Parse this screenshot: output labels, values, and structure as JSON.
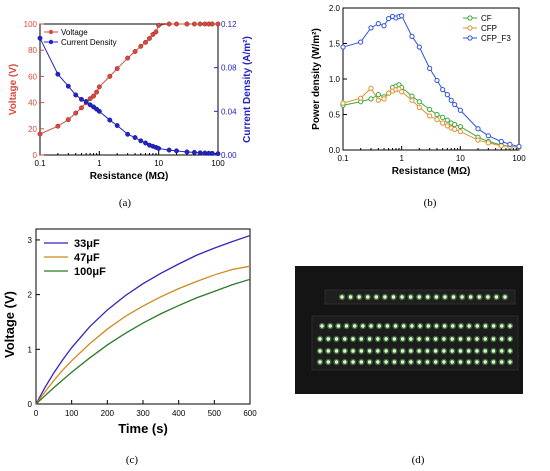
{
  "captions": [
    "(a)",
    "(b)",
    "(c)",
    "(d)"
  ],
  "colors": {
    "voltage": "#d84a3e",
    "current": "#2323c8",
    "cf": "#3aa83a",
    "cfp": "#e0902e",
    "cfp_f3": "#2f52d8",
    "c33": "#3a1fc0",
    "c47": "#d08a1a",
    "c100": "#2a7a2a",
    "led_bg": "#141414",
    "led": "#8cf07a"
  },
  "chart_data": [
    {
      "type": "line",
      "xscale": "log",
      "xlabel": "Resistance (MΩ)",
      "ylabel": "Voltage (V)",
      "ylabel_right": "Current Density (A/m²)",
      "xlim": [
        0.1,
        100
      ],
      "ylim": [
        0,
        100
      ],
      "ylim_right": [
        0,
        0.12
      ],
      "xticks": [
        "0.1",
        "1",
        "10",
        "100"
      ],
      "yticks": [
        "0",
        "20",
        "40",
        "60",
        "80",
        "100"
      ],
      "yticks_right": [
        "0.00",
        "0.04",
        "0.08",
        "0.12"
      ],
      "legend_placement": "top-left",
      "series": [
        {
          "name": "Voltage",
          "axis": "left",
          "x": [
            0.1,
            0.2,
            0.3,
            0.4,
            0.5,
            0.6,
            0.7,
            0.8,
            0.9,
            1,
            1.5,
            2,
            3,
            4,
            5,
            6,
            7,
            8,
            9,
            10,
            15,
            20,
            30,
            40,
            50,
            60,
            70,
            80,
            100
          ],
          "y": [
            16,
            22,
            27,
            32,
            36,
            40,
            43,
            45,
            48,
            52,
            60,
            66,
            74,
            79,
            83,
            86,
            89,
            92,
            94,
            99,
            100,
            100,
            100,
            100,
            100,
            100,
            100,
            100,
            100
          ]
        },
        {
          "name": "Current Density",
          "axis": "right",
          "x": [
            0.1,
            0.2,
            0.3,
            0.4,
            0.5,
            0.6,
            0.7,
            0.8,
            0.9,
            1,
            1.5,
            2,
            3,
            4,
            5,
            6,
            7,
            8,
            9,
            10,
            15,
            20,
            30,
            40,
            50,
            60,
            70,
            80,
            100
          ],
          "y": [
            0.107,
            0.074,
            0.063,
            0.055,
            0.051,
            0.049,
            0.046,
            0.044,
            0.042,
            0.04,
            0.032,
            0.027,
            0.019,
            0.016,
            0.013,
            0.011,
            0.009,
            0.008,
            0.007,
            0.006,
            0.0045,
            0.0038,
            0.0028,
            0.0024,
            0.002,
            0.0018,
            0.0016,
            0.0015,
            0.0012
          ]
        }
      ]
    },
    {
      "type": "line",
      "xscale": "log",
      "xlabel": "Resistance (MΩ)",
      "ylabel": "Power density (W/m²)",
      "xlim": [
        0.1,
        100
      ],
      "ylim": [
        0,
        2.0
      ],
      "xticks": [
        "0.1",
        "1",
        "10",
        "100"
      ],
      "yticks": [
        "0.0",
        "0.5",
        "1.0",
        "1.5",
        "2.0"
      ],
      "legend_placement": "top-right",
      "series": [
        {
          "name": "CF",
          "x": [
            0.1,
            0.2,
            0.3,
            0.4,
            0.5,
            0.6,
            0.7,
            0.8,
            0.9,
            1,
            1.5,
            2,
            3,
            4,
            5,
            6,
            7,
            8,
            10,
            20,
            30,
            50,
            70,
            100
          ],
          "y": [
            0.63,
            0.68,
            0.72,
            0.78,
            0.75,
            0.8,
            0.88,
            0.9,
            0.92,
            0.88,
            0.76,
            0.68,
            0.57,
            0.5,
            0.46,
            0.42,
            0.38,
            0.36,
            0.33,
            0.18,
            0.12,
            0.07,
            0.05,
            0.04
          ]
        },
        {
          "name": "CFP",
          "x": [
            0.1,
            0.2,
            0.3,
            0.4,
            0.5,
            0.6,
            0.7,
            0.8,
            0.9,
            1,
            1.5,
            2,
            3,
            4,
            5,
            6,
            7,
            8,
            10,
            20,
            30,
            50,
            70,
            100
          ],
          "y": [
            0.66,
            0.73,
            0.87,
            0.7,
            0.72,
            0.8,
            0.83,
            0.85,
            0.86,
            0.82,
            0.7,
            0.6,
            0.48,
            0.43,
            0.38,
            0.34,
            0.31,
            0.29,
            0.26,
            0.14,
            0.1,
            0.06,
            0.05,
            0.04
          ]
        },
        {
          "name": "CFP_F3",
          "x": [
            0.1,
            0.2,
            0.3,
            0.4,
            0.5,
            0.6,
            0.7,
            0.8,
            0.9,
            1,
            1.5,
            2,
            3,
            4,
            5,
            6,
            7,
            8,
            10,
            20,
            30,
            50,
            70,
            100
          ],
          "y": [
            1.45,
            1.52,
            1.72,
            1.78,
            1.75,
            1.85,
            1.88,
            1.86,
            1.88,
            1.89,
            1.6,
            1.45,
            1.15,
            0.98,
            0.85,
            0.78,
            0.7,
            0.64,
            0.56,
            0.3,
            0.2,
            0.12,
            0.08,
            0.05
          ]
        }
      ]
    },
    {
      "type": "line",
      "xlabel": "Time (s)",
      "ylabel": "Voltage (V)",
      "xlim": [
        0,
        600
      ],
      "ylim": [
        0,
        3.2
      ],
      "xticks": [
        "0",
        "100",
        "200",
        "300",
        "400",
        "500",
        "600"
      ],
      "yticks": [
        "0",
        "1",
        "2",
        "3"
      ],
      "legend_placement": "top-left",
      "series": [
        {
          "name": "33μF",
          "x": [
            0,
            25,
            50,
            75,
            100,
            150,
            200,
            250,
            300,
            350,
            400,
            450,
            500,
            550,
            600
          ],
          "y": [
            0,
            0.3,
            0.57,
            0.81,
            1.03,
            1.41,
            1.72,
            1.98,
            2.2,
            2.39,
            2.56,
            2.72,
            2.85,
            2.97,
            3.08
          ]
        },
        {
          "name": "47μF",
          "x": [
            0,
            25,
            50,
            75,
            100,
            150,
            200,
            250,
            300,
            350,
            400,
            450,
            500,
            550,
            600
          ],
          "y": [
            0,
            0.22,
            0.43,
            0.62,
            0.79,
            1.1,
            1.37,
            1.6,
            1.79,
            1.96,
            2.11,
            2.24,
            2.36,
            2.46,
            2.52
          ]
        },
        {
          "name": "100μF",
          "x": [
            0,
            25,
            50,
            75,
            100,
            150,
            200,
            250,
            300,
            350,
            400,
            450,
            500,
            550,
            600
          ],
          "y": [
            0,
            0.15,
            0.3,
            0.44,
            0.58,
            0.84,
            1.08,
            1.29,
            1.48,
            1.65,
            1.8,
            1.94,
            2.06,
            2.18,
            2.28
          ]
        }
      ]
    }
  ]
}
